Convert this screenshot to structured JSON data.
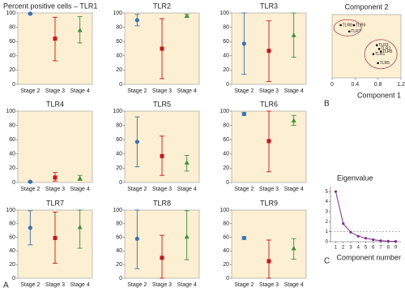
{
  "panel_labels": [
    "A",
    "B",
    "C"
  ],
  "chart_data": [
    {
      "type": "errorbar",
      "title": "Percent positive cells – TLR1",
      "categories": [
        "Stage 2",
        "Stage 3",
        "Stage 4"
      ],
      "values": [
        99,
        64,
        76
      ],
      "lower": [
        98,
        33,
        58
      ],
      "upper": [
        100,
        94,
        95
      ],
      "colors": [
        "#3a6fb5",
        "#c4161c",
        "#3e8f3e"
      ],
      "markers": [
        "circle",
        "square",
        "triangle"
      ],
      "ylim": [
        0,
        100
      ],
      "yticks": [
        0,
        20,
        40,
        60,
        80,
        100
      ]
    },
    {
      "type": "errorbar",
      "title": "TLR2",
      "categories": [
        "Stage 2",
        "Stage 3",
        "Stage 4"
      ],
      "values": [
        90,
        50,
        96
      ],
      "lower": [
        82,
        8,
        94
      ],
      "upper": [
        98,
        92,
        98
      ],
      "colors": [
        "#3a6fb5",
        "#c4161c",
        "#3e8f3e"
      ],
      "markers": [
        "circle",
        "square",
        "triangle"
      ],
      "ylim": [
        0,
        100
      ],
      "yticks": [
        0,
        20,
        40,
        60,
        80,
        100
      ]
    },
    {
      "type": "errorbar",
      "title": "TLR3",
      "categories": [
        "Stage 2",
        "Stage 3",
        "Stage 4"
      ],
      "values": [
        57,
        47,
        69
      ],
      "lower": [
        14,
        4,
        38
      ],
      "upper": [
        100,
        89,
        100
      ],
      "colors": [
        "#3a6fb5",
        "#c4161c",
        "#3e8f3e"
      ],
      "markers": [
        "circle",
        "square",
        "triangle"
      ],
      "ylim": [
        0,
        100
      ],
      "yticks": [
        0,
        20,
        40,
        60,
        80,
        100
      ]
    },
    {
      "type": "errorbar",
      "title": "TLR4",
      "categories": [
        "Stage 2",
        "Stage 3",
        "Stage 4"
      ],
      "values": [
        1,
        7,
        6
      ],
      "lower": [
        0,
        2,
        3
      ],
      "upper": [
        2,
        14,
        10
      ],
      "colors": [
        "#3a6fb5",
        "#c4161c",
        "#3e8f3e"
      ],
      "markers": [
        "circle",
        "square",
        "triangle"
      ],
      "ylim": [
        0,
        100
      ],
      "yticks": [
        0,
        20,
        40,
        60,
        80,
        100
      ]
    },
    {
      "type": "errorbar",
      "title": "TLR5",
      "categories": [
        "Stage 2",
        "Stage 3",
        "Stage 4"
      ],
      "values": [
        57,
        37,
        28
      ],
      "lower": [
        22,
        10,
        16
      ],
      "upper": [
        92,
        65,
        38
      ],
      "colors": [
        "#3a6fb5",
        "#c4161c",
        "#3e8f3e"
      ],
      "markers": [
        "circle",
        "square",
        "triangle"
      ],
      "ylim": [
        0,
        100
      ],
      "yticks": [
        0,
        20,
        40,
        60,
        80,
        100
      ]
    },
    {
      "type": "errorbar",
      "title": "TLR6",
      "categories": [
        "Stage 2",
        "Stage 3",
        "Stage 4"
      ],
      "values": [
        96,
        58,
        87
      ],
      "lower": [
        94,
        15,
        80
      ],
      "upper": [
        98,
        100,
        94
      ],
      "colors": [
        "#3a6fb5",
        "#c4161c",
        "#3e8f3e"
      ],
      "markers": [
        "circle",
        "square",
        "triangle"
      ],
      "ylim": [
        0,
        100
      ],
      "yticks": [
        0,
        20,
        40,
        60,
        80,
        100
      ]
    },
    {
      "type": "errorbar",
      "title": "TLR7",
      "categories": [
        "Stage 2",
        "Stage 3",
        "Stage 4"
      ],
      "values": [
        74,
        59,
        75
      ],
      "lower": [
        49,
        22,
        44
      ],
      "upper": [
        99,
        97,
        100
      ],
      "colors": [
        "#3a6fb5",
        "#c4161c",
        "#3e8f3e"
      ],
      "markers": [
        "circle",
        "square",
        "triangle"
      ],
      "ylim": [
        0,
        100
      ],
      "yticks": [
        0,
        20,
        40,
        60,
        80,
        100
      ]
    },
    {
      "type": "errorbar",
      "title": "TLR8",
      "categories": [
        "Stage 2",
        "Stage 3",
        "Stage 4"
      ],
      "values": [
        58,
        30,
        61
      ],
      "lower": [
        14,
        0,
        27
      ],
      "upper": [
        100,
        63,
        99
      ],
      "colors": [
        "#3a6fb5",
        "#c4161c",
        "#3e8f3e"
      ],
      "markers": [
        "circle",
        "square",
        "triangle"
      ],
      "ylim": [
        0,
        100
      ],
      "yticks": [
        0,
        20,
        40,
        60,
        80,
        100
      ]
    },
    {
      "type": "errorbar",
      "title": "TLR9",
      "categories": [
        "Stage 2",
        "Stage 3",
        "Stage 4"
      ],
      "values": [
        59,
        25,
        44
      ],
      "lower": [
        57,
        0,
        28
      ],
      "upper": [
        61,
        56,
        58
      ],
      "colors": [
        "#3a6fb5",
        "#c4161c",
        "#3e8f3e"
      ],
      "markers": [
        "circle",
        "square",
        "triangle"
      ],
      "ylim": [
        0,
        100
      ],
      "yticks": [
        0,
        20,
        40,
        60,
        80,
        100
      ]
    },
    {
      "type": "scatter",
      "title": "Component 2",
      "x_label": "Component 1",
      "point_labels": [
        "TLR8",
        "TLR9",
        "TLR7",
        "TLR3",
        "TLR2",
        "TLR6",
        "TLR1",
        "TLR5"
      ],
      "x": [
        0.15,
        0.38,
        0.3,
        0.78,
        0.82,
        0.85,
        0.72,
        0.8
      ],
      "values": [
        1.0,
        1.0,
        0.88,
        0.62,
        0.55,
        0.5,
        0.45,
        0.28
      ],
      "color": "#000000",
      "xlim": [
        0,
        1.2
      ],
      "xticks": [
        0,
        0.4,
        0.8,
        1.2
      ],
      "ylim": [
        0,
        1.2
      ]
    },
    {
      "type": "line",
      "title": "Eigenvalue",
      "x_label": "Component number",
      "x": [
        1,
        2,
        3,
        4,
        5,
        6,
        7,
        8,
        9
      ],
      "values": [
        5.0,
        1.8,
        0.95,
        0.55,
        0.35,
        0.2,
        0.1,
        0.05,
        0.03
      ],
      "color": "#7b2d8e",
      "reference_line": 1,
      "xlim": [
        0.3,
        9.7
      ],
      "xticks": [
        1,
        2,
        3,
        4,
        5,
        6,
        7,
        8,
        9
      ],
      "ylim": [
        0,
        5.5
      ],
      "yticks": [
        0,
        1,
        2,
        3,
        4,
        5
      ]
    }
  ]
}
